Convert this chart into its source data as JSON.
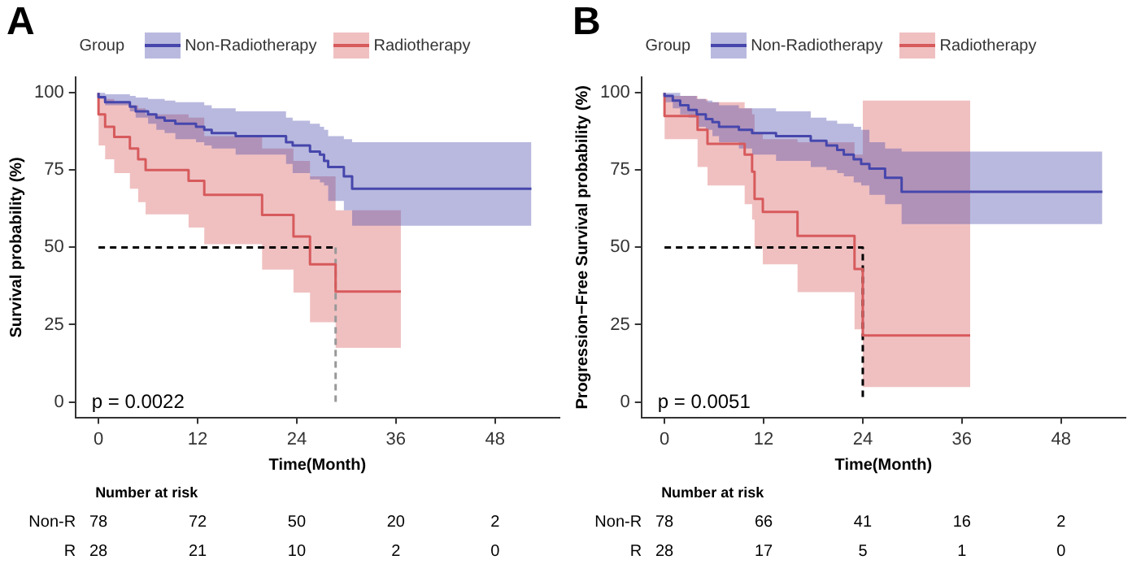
{
  "chart_data": [
    {
      "type": "step",
      "title": "A",
      "xlabel": "Time(Month)",
      "ylabel": "Survival probability (%)",
      "legend_title": "Group",
      "legend": "top",
      "xlim": [
        -2.8,
        55.8
      ],
      "ylim": [
        -5,
        105
      ],
      "xticks": [
        0,
        12,
        24,
        36,
        48
      ],
      "yticks": [
        0,
        25,
        50,
        75,
        100
      ],
      "annotations": [
        "p = 0.0022"
      ],
      "series": [
        {
          "name": "Non-Radiotherapy",
          "color": "#4646ac",
          "x": [
            0,
            0.8,
            3.8,
            4.5,
            6,
            7,
            8,
            9.3,
            11.8,
            12.8,
            13.7,
            16.6,
            22.7,
            23.5,
            25.6,
            26.8,
            27.3,
            27.8,
            29.7,
            30.7,
            36.6,
            52.4
          ],
          "values": [
            100,
            98.6,
            97,
            95.5,
            94,
            93,
            92,
            91,
            90,
            89,
            88,
            87,
            86,
            84,
            83,
            81,
            80,
            78,
            76,
            73,
            69,
            69
          ],
          "lower": [
            100,
            98,
            96,
            94,
            92,
            90,
            88,
            87,
            85,
            84,
            83,
            82,
            80,
            77,
            74,
            72,
            71,
            70,
            65,
            62,
            57,
            57
          ],
          "upper": [
            100,
            100,
            99.5,
            99,
            98.5,
            98,
            98,
            97.5,
            97,
            97,
            96,
            95,
            94,
            92,
            91,
            90,
            89,
            88,
            86,
            85,
            84,
            84
          ]
        },
        {
          "name": "Radiotherapy",
          "color": "#d75a5c",
          "x": [
            0,
            0.8,
            1.9,
            3.8,
            4.8,
            5.7,
            10.9,
            12.8,
            19.8,
            23.6,
            25.6,
            28.7,
            29.7,
            36.6
          ],
          "values": [
            100,
            93,
            89,
            85.7,
            82,
            78.5,
            75,
            71.5,
            67,
            60.5,
            53.5,
            44.5,
            35.7,
            35.7
          ],
          "lower": [
            100,
            83,
            78.5,
            74,
            69,
            64.6,
            60.7,
            56.4,
            51,
            42.8,
            35.4,
            25.8,
            17.5,
            17.5
          ],
          "upper": [
            100,
            99,
            98,
            97,
            96,
            95,
            93,
            92,
            86,
            82,
            78,
            73,
            62,
            62
          ]
        },
        {
          "type": "line",
          "color": "#000000",
          "line_style": "dashed",
          "x": [
            0,
            28.7
          ],
          "values": [
            50,
            50
          ]
        },
        {
          "type": "line",
          "color": "#999999",
          "line_style": "dashed",
          "x": [
            28.7,
            28.7
          ],
          "values": [
            50,
            0
          ]
        }
      ]
    },
    {
      "type": "step",
      "title": "B",
      "xlabel": "Time(Month)",
      "ylabel": "Progression−Free Survival probability (%)",
      "legend_title": "Group",
      "legend": "top",
      "xlim": [
        -2.8,
        55.8
      ],
      "ylim": [
        -5,
        105
      ],
      "xticks": [
        0,
        12,
        24,
        36,
        48
      ],
      "yticks": [
        0,
        25,
        50,
        75,
        100
      ],
      "annotations": [
        "p = 0.0051"
      ],
      "series": [
        {
          "name": "Non-Radiotherapy",
          "color": "#4646ac",
          "x": [
            0,
            1,
            1.9,
            2.9,
            3.9,
            5,
            5.8,
            6.6,
            9,
            10.6,
            13.5,
            17.7,
            19.6,
            20.9,
            21.7,
            22.9,
            23.8,
            24.8,
            26.7,
            28.7,
            29.1,
            53
          ],
          "values": [
            100,
            99,
            97.5,
            96,
            94.5,
            93,
            91.5,
            90.5,
            89,
            88,
            87,
            86,
            84.5,
            83,
            81.5,
            80,
            78.5,
            77,
            75.5,
            72.5,
            68,
            68
          ],
          "lower": [
            100,
            97,
            95,
            93,
            92,
            89,
            88,
            86,
            84,
            82,
            80,
            78,
            76,
            75,
            74,
            73,
            71,
            70,
            67,
            64,
            57.5,
            57.5
          ],
          "upper": [
            100,
            100,
            100,
            99,
            99,
            98,
            97.5,
            97,
            96,
            95,
            95,
            94,
            92,
            91,
            90,
            90,
            89,
            88,
            84,
            82,
            81,
            81
          ]
        },
        {
          "name": "Radiotherapy",
          "color": "#d75a5c",
          "x": [
            0,
            4,
            5.2,
            9.7,
            10.6,
            10.9,
            11.9,
            16.1,
            23,
            24,
            29.9,
            37
          ],
          "values": [
            100,
            92.5,
            88,
            83.5,
            80,
            74.5,
            65.7,
            61.5,
            53.7,
            43,
            21.5,
            21.5
          ],
          "lower": [
            100,
            85,
            76,
            70,
            64,
            59,
            50,
            44.5,
            35.5,
            23.5,
            4.8,
            4.8
          ],
          "upper": [
            100,
            99,
            98,
            97,
            95,
            93,
            87,
            85,
            84,
            80,
            97.5,
            97.5
          ]
        },
        {
          "type": "line",
          "color": "#000000",
          "line_style": "dashed",
          "x": [
            0,
            24,
            24
          ],
          "values": [
            50,
            50,
            0
          ]
        }
      ]
    },
    {
      "type": "other",
      "title": "Number at risk",
      "y_categories": [
        "Non-R",
        "R"
      ],
      "cell_labels": [
        [
          "78",
          "72",
          "50",
          "20",
          "2"
        ],
        [
          "28",
          "21",
          "10",
          "2",
          "0"
        ]
      ]
    },
    {
      "type": "other",
      "title": "Number at risk",
      "y_categories": [
        "Non-R",
        "R"
      ],
      "cell_labels": [
        [
          "78",
          "66",
          "41",
          "16",
          "2"
        ],
        [
          "28",
          "17",
          "5",
          "1",
          "0"
        ]
      ]
    }
  ]
}
